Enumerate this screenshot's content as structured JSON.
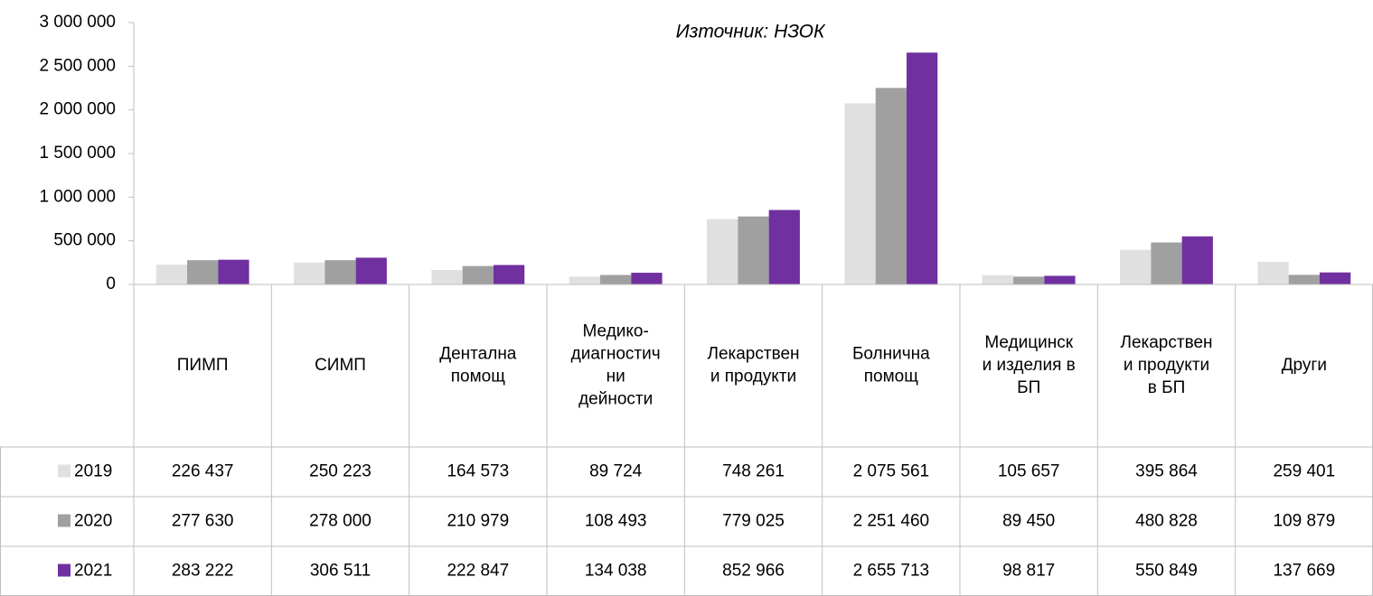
{
  "chart_data": {
    "type": "bar",
    "subtitle": "Източник: НЗОК",
    "categories": [
      "ПИМП",
      "СИМП",
      "Дентална\nпомощ",
      "Медико-\nдиагностич\nни\nдейности",
      "Лекарствен\nи продукти",
      "Болнична\nпомощ",
      "Медицинск\nи изделия в\nБП",
      "Лекарствен\nи продукти\nв БП",
      "Други"
    ],
    "series": [
      {
        "name": "2019",
        "color": "#e0e0e0",
        "values": [
          226437,
          250223,
          164573,
          89724,
          748261,
          2075561,
          105657,
          395864,
          259401
        ],
        "value_labels": [
          "226 437",
          "250 223",
          "164 573",
          "89 724",
          "748 261",
          "2 075 561",
          "105 657",
          "395 864",
          "259 401"
        ]
      },
      {
        "name": "2020",
        "color": "#a0a0a0",
        "values": [
          277630,
          278000,
          210979,
          108493,
          779025,
          2251460,
          89450,
          480828,
          109879
        ],
        "value_labels": [
          "277 630",
          "278 000",
          "210 979",
          "108 493",
          "779 025",
          "2 251 460",
          "89 450",
          "480 828",
          "109 879"
        ]
      },
      {
        "name": "2021",
        "color": "#7030a0",
        "values": [
          283222,
          306511,
          222847,
          134038,
          852966,
          2655713,
          98817,
          550849,
          137669
        ],
        "value_labels": [
          "283 222",
          "306 511",
          "222 847",
          "134 038",
          "852 966",
          "2 655 713",
          "98 817",
          "550 849",
          "137 669"
        ]
      }
    ],
    "ylim": [
      0,
      3000000
    ],
    "yticks": [
      {
        "value": 0,
        "label": "0"
      },
      {
        "value": 500000,
        "label": "500 000"
      },
      {
        "value": 1000000,
        "label": "1 000 000"
      },
      {
        "value": 1500000,
        "label": "1 500 000"
      },
      {
        "value": 2000000,
        "label": "2 000 000"
      },
      {
        "value": 2500000,
        "label": "2 500 000"
      },
      {
        "value": 3000000,
        "label": "3 000 000"
      }
    ]
  }
}
